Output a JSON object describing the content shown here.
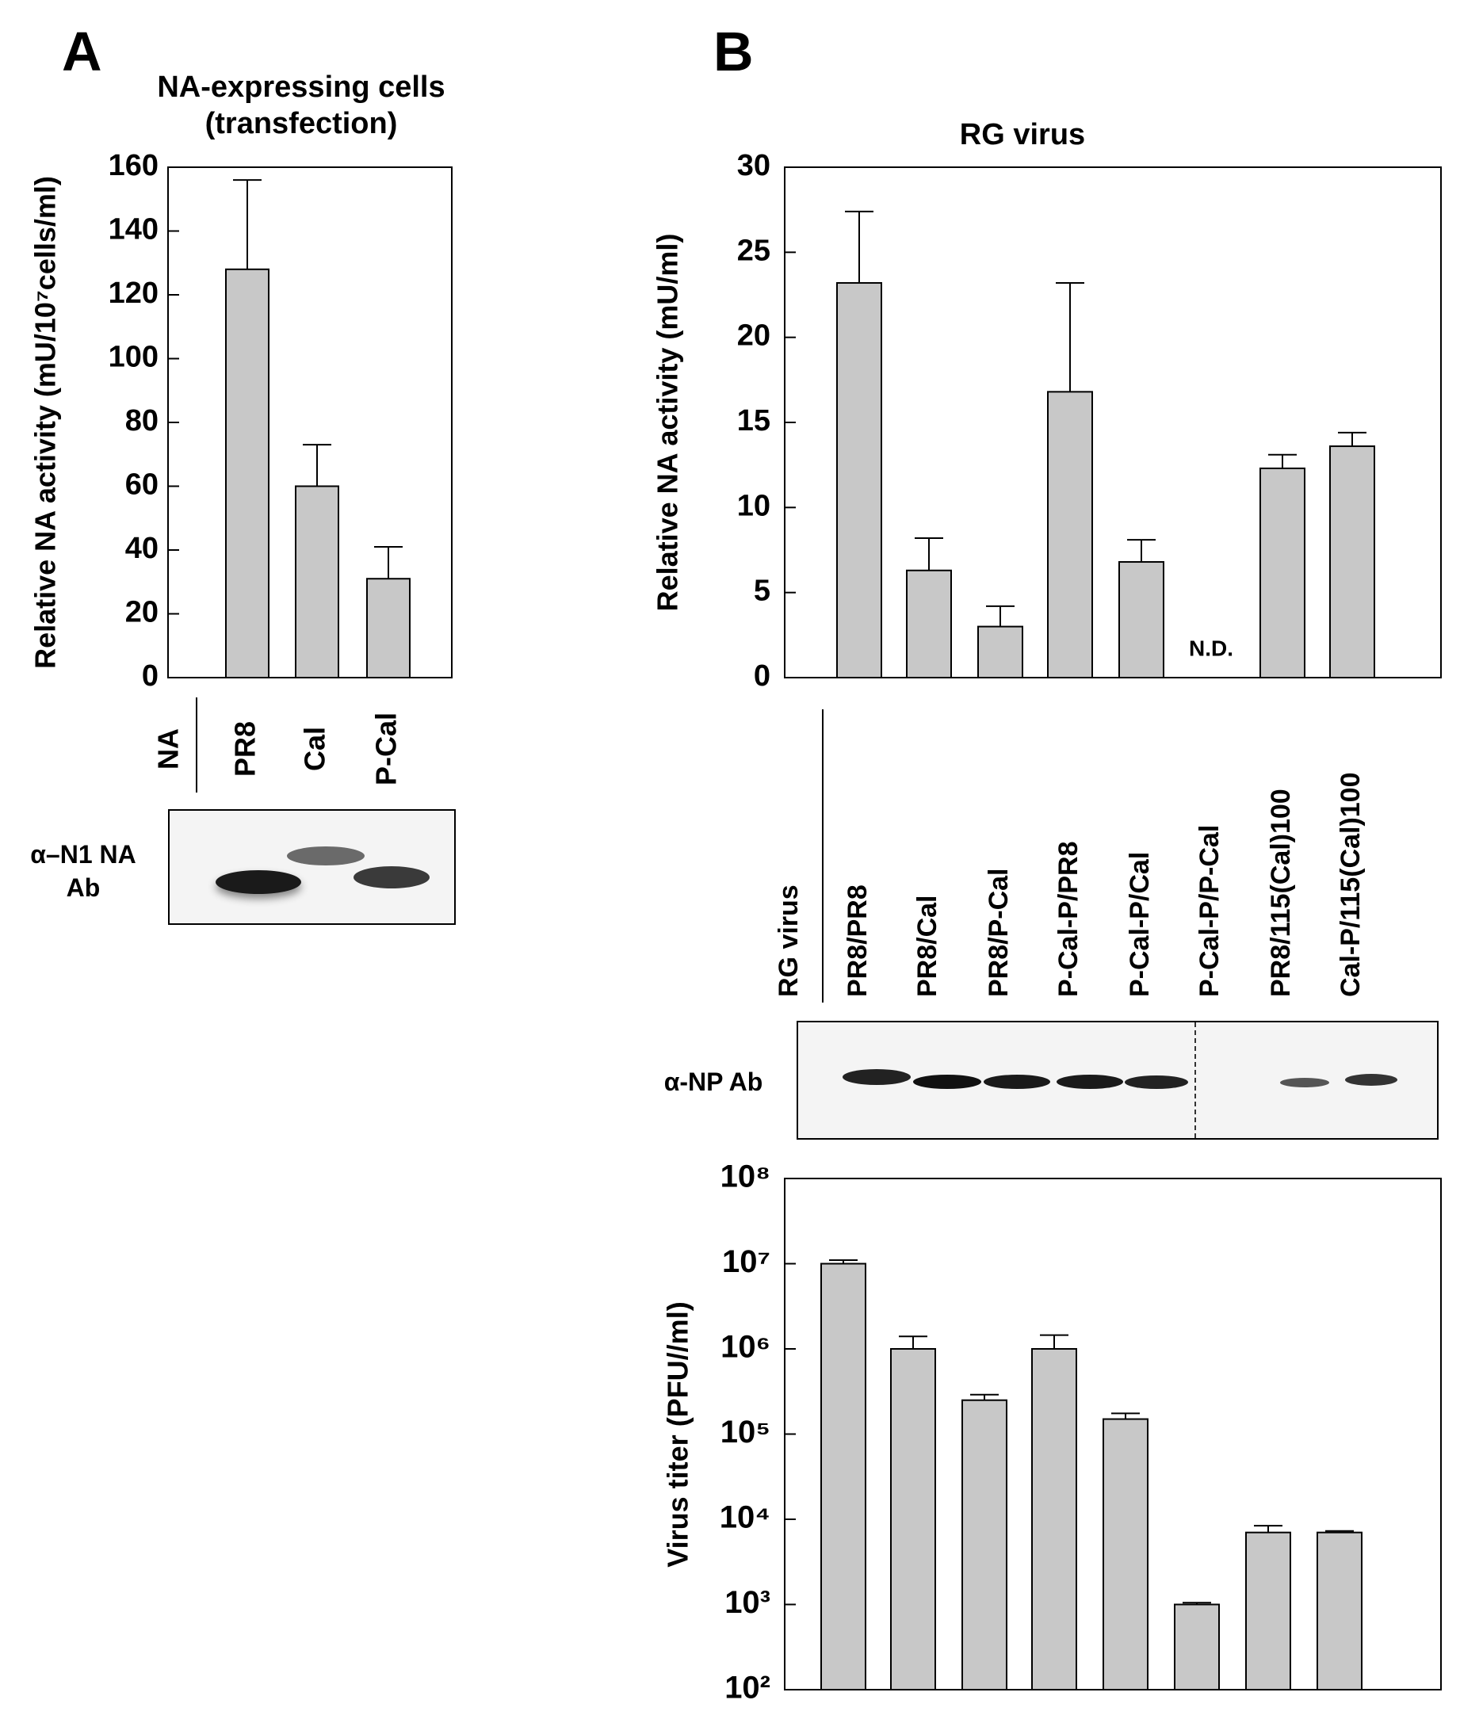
{
  "panel_a": {
    "letter": "A",
    "title_line1": "NA-expressing cells",
    "title_line2": "(transfection)",
    "lane_header": "NA",
    "blot_label_line1": "α–N1 NA",
    "blot_label_line2": "Ab"
  },
  "panel_b": {
    "letter": "B",
    "title": "RG virus",
    "lane_header": "RG virus",
    "nd_label": "N.D.",
    "blot_label": "α-NP Ab"
  },
  "chart_data": [
    {
      "type": "bar",
      "title": "NA-expressing cells (transfection)",
      "ylabel": "Relative NA activity (mU/10⁷cells/ml)",
      "xlabel": "NA",
      "categories": [
        "PR8",
        "Cal",
        "P-Cal"
      ],
      "values": [
        128,
        60,
        31
      ],
      "errors": [
        28,
        13,
        10
      ],
      "ylim": [
        0,
        160
      ],
      "yticks": [
        0,
        20,
        40,
        60,
        80,
        100,
        120,
        140,
        160
      ],
      "bar_color": "#c8c8c8"
    },
    {
      "type": "bar",
      "title": "RG virus",
      "ylabel": "Relative NA activity (mU/ml)",
      "xlabel": "RG virus",
      "categories": [
        "PR8/PR8",
        "PR8/Cal",
        "PR8/P-Cal",
        "P-Cal-P/PR8",
        "P-Cal-P/Cal",
        "P-Cal-P/P-Cal",
        "PR8/115(Cal)100",
        "Cal-P/115(Cal)100"
      ],
      "values": [
        23.2,
        6.3,
        3.0,
        16.8,
        6.8,
        null,
        12.3,
        13.6
      ],
      "errors": [
        4.2,
        1.9,
        1.2,
        6.4,
        1.3,
        null,
        0.8,
        0.8
      ],
      "ylim": [
        0,
        30
      ],
      "yticks": [
        0,
        5,
        10,
        15,
        20,
        25,
        30
      ],
      "annotations": [
        {
          "category": "P-Cal-P/P-Cal",
          "text": "N.D."
        }
      ],
      "bar_color": "#c8c8c8"
    },
    {
      "type": "bar",
      "ylabel": "Virus titer (PFU//ml)",
      "yscale": "log",
      "categories": [
        "PR8/PR8",
        "PR8/Cal",
        "PR8/P-Cal",
        "P-Cal-P/PR8",
        "P-Cal-P/Cal",
        "P-Cal-P/P-Cal",
        "PR8/115(Cal)100",
        "Cal-P/115(Cal)100"
      ],
      "values": [
        10000000,
        1000000,
        250000,
        1000000,
        150000,
        1000,
        7000,
        7000
      ],
      "errors_upper": [
        11000000,
        1400000,
        290000,
        1450000,
        175000,
        1050,
        8400,
        7300
      ],
      "ylim": [
        100,
        100000000
      ],
      "yticks": [
        "10²",
        "10³",
        "10⁴",
        "10⁵",
        "10⁶",
        "10⁷",
        "10⁸"
      ],
      "bar_color": "#c8c8c8"
    }
  ]
}
